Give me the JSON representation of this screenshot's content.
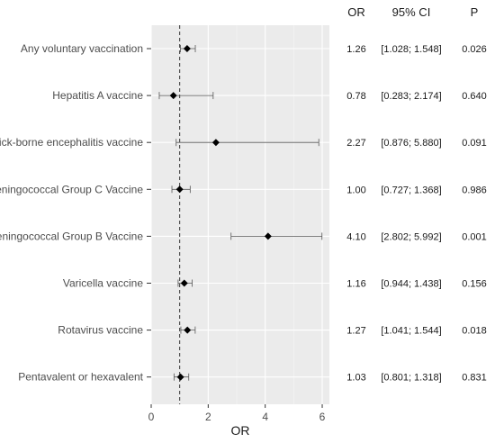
{
  "chart_data": {
    "type": "forest",
    "xlabel": "OR",
    "xlim": [
      0,
      6.3
    ],
    "xticks": [
      "0",
      "2",
      "4",
      "6"
    ],
    "reference_line": 1,
    "grid": true,
    "columns": {
      "or": "OR",
      "ci": "95% CI",
      "p": "P"
    },
    "rows": [
      {
        "label": "Any voluntary vaccination",
        "or": 1.26,
        "lo": 1.028,
        "hi": 1.548,
        "or_text": "1.26",
        "ci_text": "[1.028; 1.548]",
        "p_text": "0.026"
      },
      {
        "label": "Hepatitis A vaccine",
        "or": 0.78,
        "lo": 0.283,
        "hi": 2.174,
        "or_text": "0.78",
        "ci_text": "[0.283; 2.174]",
        "p_text": "0.640"
      },
      {
        "label": "Tick-borne encephalitis vaccine",
        "or": 2.27,
        "lo": 0.876,
        "hi": 5.88,
        "or_text": "2.27",
        "ci_text": "[0.876; 5.880]",
        "p_text": "0.091"
      },
      {
        "label": "Meningococcal Group C Vaccine",
        "or": 1.0,
        "lo": 0.727,
        "hi": 1.368,
        "or_text": "1.00",
        "ci_text": "[0.727; 1.368]",
        "p_text": "0.986"
      },
      {
        "label": "Meningococcal Group B Vaccine",
        "or": 4.1,
        "lo": 2.802,
        "hi": 5.992,
        "or_text": "4.10",
        "ci_text": "[2.802; 5.992]",
        "p_text": "0.001"
      },
      {
        "label": "Varicella vaccine",
        "or": 1.16,
        "lo": 0.944,
        "hi": 1.438,
        "or_text": "1.16",
        "ci_text": "[0.944; 1.438]",
        "p_text": "0.156"
      },
      {
        "label": "Rotavirus vaccine",
        "or": 1.27,
        "lo": 1.041,
        "hi": 1.544,
        "or_text": "1.27",
        "ci_text": "[1.041; 1.544]",
        "p_text": "0.018"
      },
      {
        "label": "Pentavalent or hexavalent",
        "or": 1.03,
        "lo": 0.801,
        "hi": 1.318,
        "or_text": "1.03",
        "ci_text": "[0.801; 1.318]",
        "p_text": "0.831"
      }
    ]
  }
}
